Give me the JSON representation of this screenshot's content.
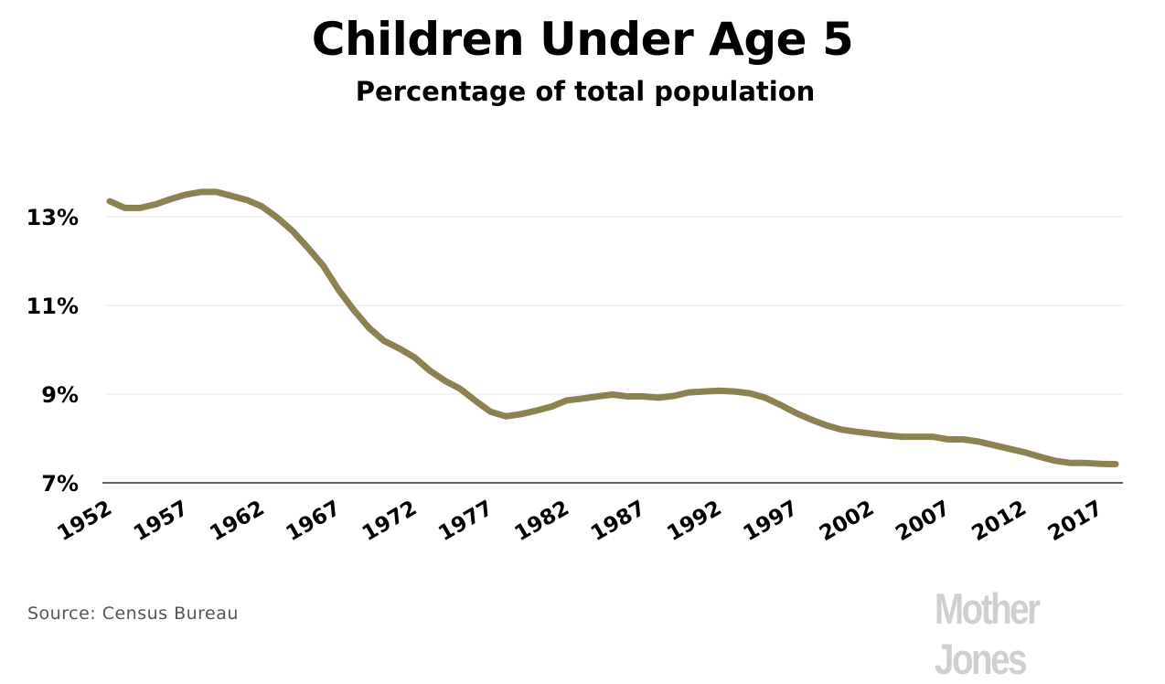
{
  "chart_data": {
    "type": "line",
    "title": "Children Under Age 5",
    "subtitle": "Percentage of total population",
    "xlabel": "",
    "ylabel": "",
    "x_ticks": [
      "1952",
      "1957",
      "1962",
      "1967",
      "1972",
      "1977",
      "1982",
      "1987",
      "1992",
      "1997",
      "2002",
      "2007",
      "2012",
      "2017"
    ],
    "y_ticks": [
      {
        "value": 7,
        "label": "7%"
      },
      {
        "value": 9,
        "label": "9%"
      },
      {
        "value": 11,
        "label": "11%"
      },
      {
        "value": 13,
        "label": "13%"
      }
    ],
    "ylim": [
      7,
      13.6
    ],
    "xlim": [
      1952,
      2018
    ],
    "grid": true,
    "line_color": "#8c8150",
    "series": [
      {
        "x": [
          1952,
          1953,
          1954,
          1955,
          1956,
          1957,
          1958,
          1959,
          1960,
          1961,
          1962,
          1963,
          1964,
          1965,
          1966,
          1967,
          1968,
          1969,
          1970,
          1971,
          1972,
          1973,
          1974,
          1975,
          1976,
          1977,
          1978,
          1979,
          1980,
          1981,
          1982,
          1983,
          1984,
          1985,
          1986,
          1987,
          1988,
          1989,
          1990,
          1991,
          1992,
          1993,
          1994,
          1995,
          1996,
          1997,
          1998,
          1999,
          2000,
          2001,
          2002,
          2003,
          2004,
          2005,
          2006,
          2007,
          2008,
          2009,
          2010,
          2011,
          2012,
          2013,
          2014,
          2015,
          2016,
          2017,
          2018
        ],
        "y": [
          13.35,
          13.2,
          13.2,
          13.28,
          13.4,
          13.5,
          13.56,
          13.56,
          13.47,
          13.38,
          13.23,
          12.98,
          12.68,
          12.3,
          11.9,
          11.36,
          10.9,
          10.5,
          10.2,
          10.03,
          9.83,
          9.53,
          9.3,
          9.12,
          8.85,
          8.6,
          8.5,
          8.55,
          8.63,
          8.72,
          8.86,
          8.9,
          8.95,
          8.99,
          8.95,
          8.95,
          8.92,
          8.96,
          9.04,
          9.06,
          9.08,
          9.06,
          9.02,
          8.92,
          8.76,
          8.58,
          8.43,
          8.3,
          8.2,
          8.15,
          8.11,
          8.07,
          8.04,
          8.04,
          8.04,
          7.98,
          7.98,
          7.93,
          7.85,
          7.77,
          7.69,
          7.59,
          7.5,
          7.45,
          7.45,
          7.43,
          7.42
        ]
      }
    ]
  },
  "source_text": "Source:  Census Bureau",
  "brand": "Mother Jones"
}
